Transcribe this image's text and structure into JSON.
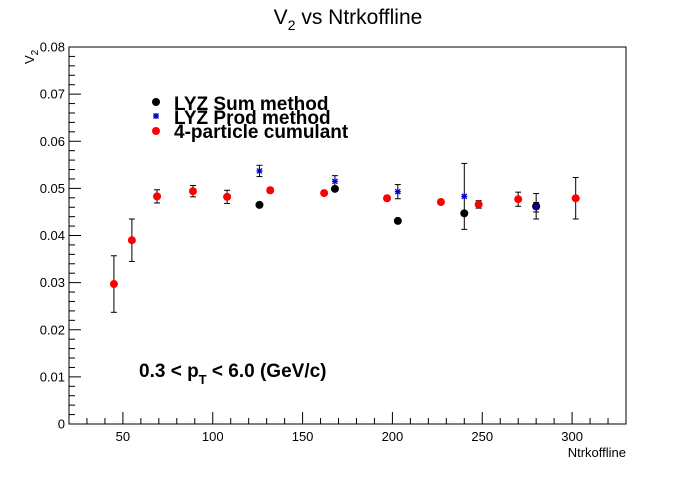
{
  "chart_data": {
    "type": "scatter",
    "title_main": "V",
    "title_sub": "2",
    "title_rest": " vs Ntrkoffline",
    "ylabel_main": "V",
    "ylabel_sub": "2",
    "xlabel": "Ntrkoffline",
    "xlim": [
      20,
      330
    ],
    "ylim": [
      0,
      0.08
    ],
    "x_major_ticks": [
      50,
      100,
      150,
      200,
      250,
      300
    ],
    "x_tick_labels": [
      "50",
      "100",
      "150",
      "200",
      "250",
      "300"
    ],
    "y_major_ticks": [
      0,
      0.01,
      0.02,
      0.03,
      0.04,
      0.05,
      0.06,
      0.07,
      0.08
    ],
    "y_tick_labels": [
      "0",
      "0.01",
      "0.02",
      "0.03",
      "0.04",
      "0.05",
      "0.06",
      "0.07",
      "0.08"
    ],
    "legend_placement": "upper-left",
    "annotation": {
      "prefix": "0.3 < p",
      "sub": "T",
      "suffix": " < 6.0 (GeV/c)"
    },
    "series": [
      {
        "name": "LYZ Sum method",
        "color": "#000000",
        "marker": "circle",
        "points": [
          {
            "x": 126,
            "y": 0.0465,
            "err": 0.0
          },
          {
            "x": 168,
            "y": 0.0499,
            "err": 0.0
          },
          {
            "x": 203,
            "y": 0.0431,
            "err": 0.0
          },
          {
            "x": 240,
            "y": 0.0447,
            "err": 0.0
          },
          {
            "x": 280,
            "y": 0.0462,
            "err": 0.0
          }
        ]
      },
      {
        "name": "LYZ Prod method",
        "color": "#0000cc",
        "marker": "star",
        "points": [
          {
            "x": 126,
            "y": 0.0537,
            "err": 0.0012
          },
          {
            "x": 168,
            "y": 0.0515,
            "err": 0.0012
          },
          {
            "x": 203,
            "y": 0.0493,
            "err": 0.0015
          },
          {
            "x": 240,
            "y": 0.0483,
            "err": 0.007
          },
          {
            "x": 280,
            "y": 0.046,
            "err": 0.001
          }
        ]
      },
      {
        "name": "4-particle cumulant",
        "color": "#ff0000",
        "marker": "circle",
        "points": [
          {
            "x": 45,
            "y": 0.0297,
            "err": 0.006
          },
          {
            "x": 55,
            "y": 0.039,
            "err": 0.0045
          },
          {
            "x": 69,
            "y": 0.0483,
            "err": 0.0014
          },
          {
            "x": 89,
            "y": 0.0494,
            "err": 0.0012
          },
          {
            "x": 108,
            "y": 0.0482,
            "err": 0.0014
          },
          {
            "x": 132,
            "y": 0.0496,
            "err": 0.0005
          },
          {
            "x": 162,
            "y": 0.049,
            "err": 0.0005
          },
          {
            "x": 197,
            "y": 0.0479,
            "err": 0.0005
          },
          {
            "x": 227,
            "y": 0.0471,
            "err": 0.0005
          },
          {
            "x": 248,
            "y": 0.0466,
            "err": 0.0008
          },
          {
            "x": 270,
            "y": 0.0477,
            "err": 0.0015
          },
          {
            "x": 280,
            "y": 0.0462,
            "err": 0.0027
          },
          {
            "x": 302,
            "y": 0.0479,
            "err": 0.0044
          }
        ]
      }
    ]
  }
}
